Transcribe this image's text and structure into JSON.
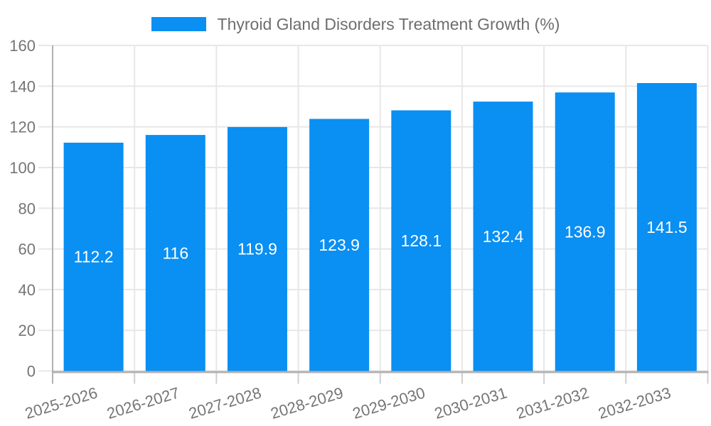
{
  "chart_data": {
    "type": "bar",
    "title": "Thyroid Gland Disorders Treatment Growth (%)",
    "legend_position": "top",
    "categories": [
      "2025-2026",
      "2026-2027",
      "2027-2028",
      "2028-2029",
      "2029-2030",
      "2030-2031",
      "2031-2032",
      "2032-2033"
    ],
    "values": [
      112.2,
      116,
      119.9,
      123.9,
      128.1,
      132.4,
      136.9,
      141.5
    ],
    "value_labels": [
      "112.2",
      "116",
      "119.9",
      "123.9",
      "128.1",
      "132.4",
      "136.9",
      "141.5"
    ],
    "xlabel": "",
    "ylabel": "",
    "ylim": [
      0,
      160
    ],
    "yticks": [
      0,
      20,
      40,
      60,
      80,
      100,
      120,
      140,
      160
    ],
    "grid": true,
    "x_label_rotation": -17,
    "colors": {
      "bar": "#0a8ff2",
      "bar_value_text": "#ffffff",
      "axis_text": "#757575",
      "title_text": "#6e6e6e",
      "gridline": "#e7e7e7",
      "tick": "#cfcfcf",
      "axis_line": "#b1b1b1",
      "background": "#ffffff"
    }
  }
}
